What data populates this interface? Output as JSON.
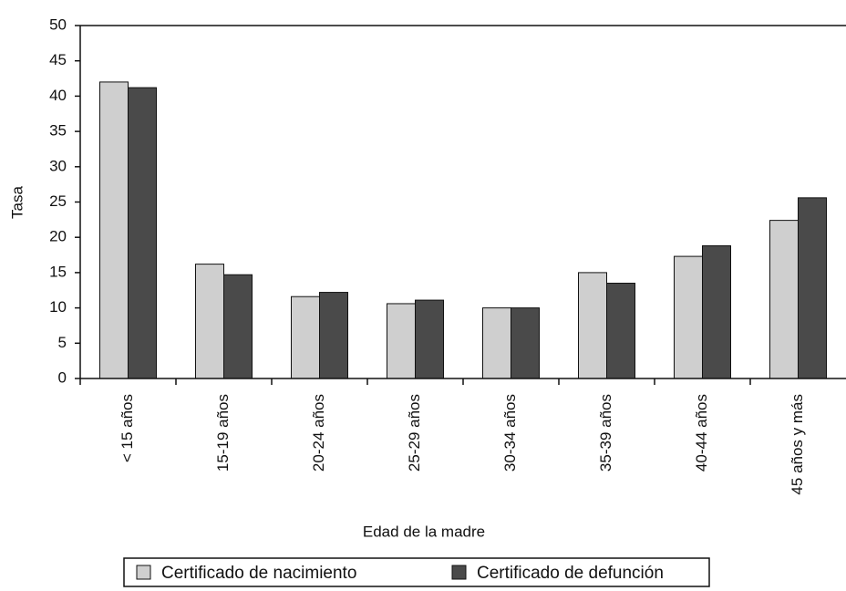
{
  "chart_data": {
    "type": "bar",
    "x_label": "Edad de la madre",
    "y_label": "Tasa",
    "categories": [
      "< 15 años",
      "15-19 años",
      "20-24 años",
      "25-29 años",
      "30-34 años",
      "35-39 años",
      "40-44 años",
      "45 años y más"
    ],
    "series": [
      {
        "name": "Certificado de nacimiento",
        "color": "#cfcfcf",
        "values": [
          42,
          16.2,
          11.6,
          10.6,
          10,
          15,
          17.3,
          22.4
        ]
      },
      {
        "name": "Certificado de defunción",
        "color": "#4a4a4a",
        "values": [
          41.2,
          14.7,
          12.2,
          11.1,
          10,
          13.5,
          18.8,
          25.6
        ]
      }
    ],
    "ylim": [
      0,
      50
    ],
    "yticks": [
      0,
      5,
      10,
      15,
      20,
      25,
      30,
      35,
      40,
      45,
      50
    ],
    "grid": false
  }
}
